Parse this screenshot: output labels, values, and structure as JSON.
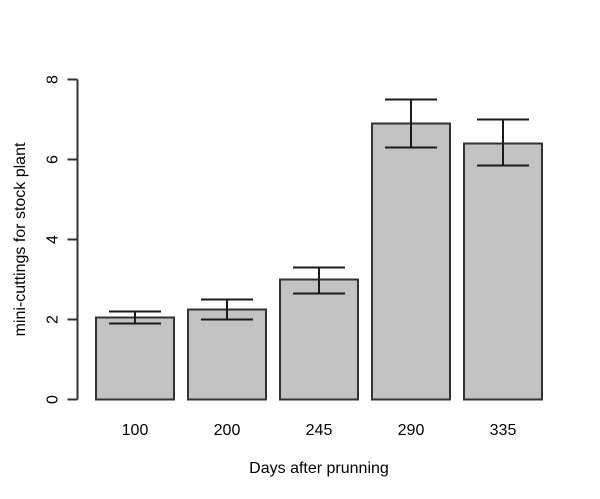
{
  "figure": {
    "background": "#ffffff"
  },
  "chart_data": {
    "type": "bar",
    "title": "",
    "xlabel": "Days after prunning",
    "ylabel": "mini-cuttings for stock plant",
    "categories": [
      "100",
      "200",
      "245",
      "290",
      "335"
    ],
    "values": [
      2.05,
      2.25,
      3.0,
      6.9,
      6.4
    ],
    "error_upper": [
      2.2,
      2.5,
      3.3,
      7.5,
      7.0
    ],
    "error_lower": [
      1.9,
      2.0,
      2.65,
      6.3,
      5.85
    ],
    "ylim": [
      0,
      8
    ],
    "yticks": [
      0,
      2,
      4,
      6,
      8
    ],
    "grid": false,
    "legend": null,
    "colors": {
      "background": "#ffffff",
      "bar_fill": "#c2c2c2",
      "bar_border": "#333333",
      "error_bar": "#1a1a1a",
      "axis": "#333333",
      "text": "#000000"
    }
  }
}
